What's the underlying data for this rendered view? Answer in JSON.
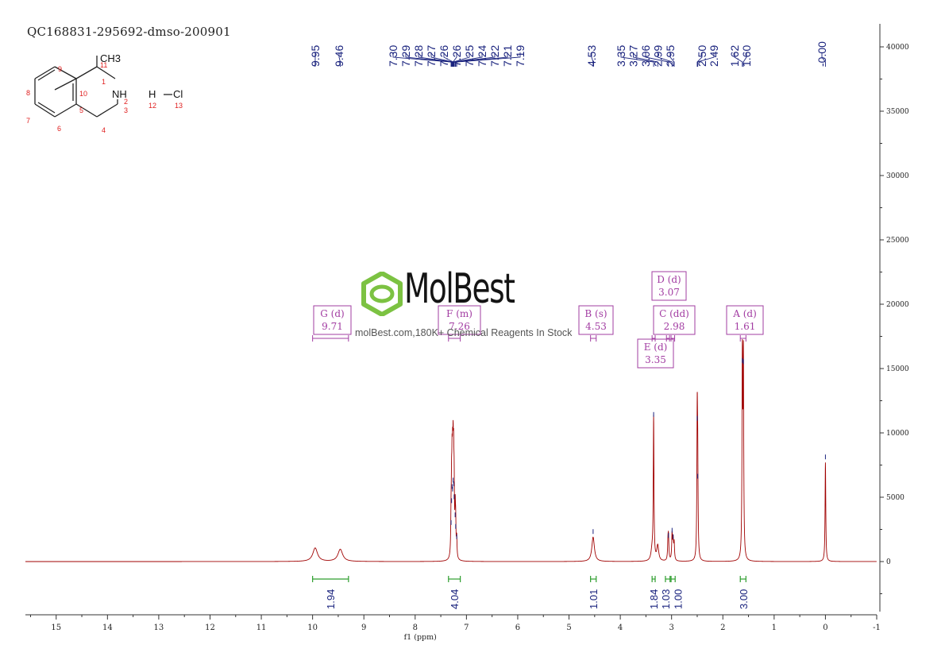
{
  "sample_id": "QC168831-295692-dmso-200901",
  "watermark": {
    "brand": "MolBest",
    "tagline": "molBest.com,180K+ Chemical Reagents In Stock",
    "brand_color": "#7cc242"
  },
  "structure": {
    "groups": [
      "CH3",
      "NH",
      "H",
      "Cl"
    ],
    "atom_numbers": [
      "11",
      "1",
      "2",
      "3",
      "4",
      "5",
      "6",
      "7",
      "8",
      "9",
      "10",
      "12",
      "13"
    ],
    "number_color": "#e02020"
  },
  "colors": {
    "spectrum": "#a00000",
    "peak_labels": "#1a237e",
    "integrals": "#2e9e2e",
    "multiplets": "#a23ca2",
    "axis": "#333333"
  },
  "chart_data": {
    "type": "line",
    "xlabel": "f1 (ppm)",
    "xlim": [
      15.6,
      -1.0
    ],
    "ylim": [
      -4200,
      41500
    ],
    "x_ticks": [
      15,
      14,
      13,
      12,
      11,
      10,
      9,
      8,
      7,
      6,
      5,
      4,
      3,
      2,
      1,
      0,
      -1
    ],
    "y_ticks": [
      0,
      5000,
      10000,
      15000,
      20000,
      25000,
      30000,
      35000,
      40000
    ],
    "peaks": [
      {
        "ppm": 9.95,
        "height": 1050,
        "width": 0.055
      },
      {
        "ppm": 9.46,
        "height": 950,
        "width": 0.055
      },
      {
        "ppm": 7.3,
        "height": 2600,
        "width": 0.007
      },
      {
        "ppm": 7.29,
        "height": 4300,
        "width": 0.007
      },
      {
        "ppm": 7.28,
        "height": 5400,
        "width": 0.007
      },
      {
        "ppm": 7.27,
        "height": 5200,
        "width": 0.007
      },
      {
        "ppm": 7.26,
        "height": 5900,
        "width": 0.007
      },
      {
        "ppm": 7.25,
        "height": 5600,
        "width": 0.007
      },
      {
        "ppm": 7.24,
        "height": 4600,
        "width": 0.007
      },
      {
        "ppm": 7.22,
        "height": 3200,
        "width": 0.007
      },
      {
        "ppm": 7.21,
        "height": 2300,
        "width": 0.007
      },
      {
        "ppm": 7.19,
        "height": 1500,
        "width": 0.007
      },
      {
        "ppm": 4.53,
        "height": 1900,
        "width": 0.03
      },
      {
        "ppm": 3.38,
        "height": 800,
        "width": 0.025
      },
      {
        "ppm": 3.35,
        "height": 11000,
        "width": 0.008
      },
      {
        "ppm": 3.27,
        "height": 1200,
        "width": 0.022
      },
      {
        "ppm": 3.07,
        "height": 1300,
        "width": 0.009
      },
      {
        "ppm": 3.06,
        "height": 1600,
        "width": 0.009
      },
      {
        "ppm": 2.99,
        "height": 2000,
        "width": 0.009
      },
      {
        "ppm": 2.97,
        "height": 1500,
        "width": 0.009
      },
      {
        "ppm": 2.95,
        "height": 1300,
        "width": 0.009
      },
      {
        "ppm": 2.5,
        "height": 10700,
        "width": 0.008
      },
      {
        "ppm": 2.49,
        "height": 6200,
        "width": 0.008
      },
      {
        "ppm": 1.62,
        "height": 15200,
        "width": 0.008
      },
      {
        "ppm": 1.6,
        "height": 15100,
        "width": 0.008
      },
      {
        "ppm": 0.0,
        "height": 7700,
        "width": 0.008
      }
    ],
    "peak_labels": [
      "9.95",
      "9.46",
      "7.30",
      "7.29",
      "7.28",
      "7.27",
      "7.26",
      "7.26",
      "7.25",
      "7.24",
      "7.22",
      "7.21",
      "7.19",
      "4.53",
      "3.35",
      "3.27",
      "3.06",
      "2.99",
      "2.95",
      "2.50",
      "2.49",
      "1.62",
      "1.60",
      "-0.00"
    ],
    "integrals": [
      {
        "from": 10.0,
        "to": 9.3,
        "value": "1.94"
      },
      {
        "from": 7.35,
        "to": 7.12,
        "value": "4.04"
      },
      {
        "from": 4.58,
        "to": 4.47,
        "value": "1.01"
      },
      {
        "from": 3.38,
        "to": 3.32,
        "value": "1.84"
      },
      {
        "from": 3.12,
        "to": 3.03,
        "value": "1.03"
      },
      {
        "from": 3.01,
        "to": 2.93,
        "value": "1.00"
      },
      {
        "from": 1.66,
        "to": 1.55,
        "value": "3.00"
      }
    ],
    "multiplets": [
      {
        "letter": "G",
        "mult": "(d)",
        "shift": "9.71",
        "from": 10.0,
        "to": 9.3
      },
      {
        "letter": "F",
        "mult": "(m)",
        "shift": "7.26",
        "from": 7.35,
        "to": 7.12
      },
      {
        "letter": "B",
        "mult": "(s)",
        "shift": "4.53",
        "from": 4.58,
        "to": 4.47
      },
      {
        "letter": "E",
        "mult": "(d)",
        "shift": "3.35",
        "from": 3.38,
        "to": 3.32
      },
      {
        "letter": "D",
        "mult": "(d)",
        "shift": "3.07",
        "from": 3.1,
        "to": 3.04
      },
      {
        "letter": "C",
        "mult": "(dd)",
        "shift": "2.98",
        "from": 3.01,
        "to": 2.94
      },
      {
        "letter": "A",
        "mult": "(d)",
        "shift": "1.61",
        "from": 1.66,
        "to": 1.55
      }
    ]
  }
}
